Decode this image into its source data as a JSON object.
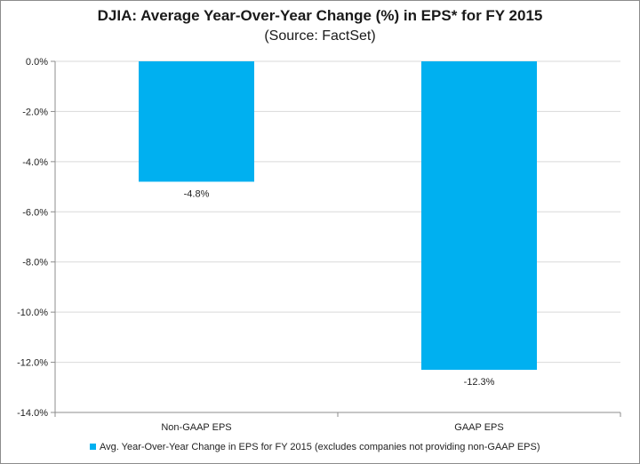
{
  "chart_data": {
    "type": "bar",
    "title": "DJIA: Average Year-Over-Year Change (%) in EPS* for FY 2015",
    "subtitle": "(Source: FactSet)",
    "categories": [
      "Non-GAAP EPS",
      "GAAP EPS"
    ],
    "series": [
      {
        "name": "Avg. Year-Over-Year Change in EPS for FY 2015 (excludes companies not providing non-GAAP EPS)",
        "values": [
          -4.8,
          -12.3
        ],
        "data_labels": [
          "-4.8%",
          "-12.3%"
        ],
        "color": "#00b0f0"
      }
    ],
    "ylim": [
      -14.0,
      0.0
    ],
    "yticks": [
      0.0,
      -2.0,
      -4.0,
      -6.0,
      -8.0,
      -10.0,
      -12.0,
      -14.0
    ],
    "ytick_labels": [
      "0.0%",
      "-2.0%",
      "-4.0%",
      "-6.0%",
      "-8.0%",
      "-10.0%",
      "-12.0%",
      "-14.0%"
    ],
    "grid": true,
    "legend_position": "bottom"
  },
  "colors": {
    "bar": "#00b0f0",
    "grid": "#d9d9d9",
    "axis": "#8c8c8c"
  }
}
